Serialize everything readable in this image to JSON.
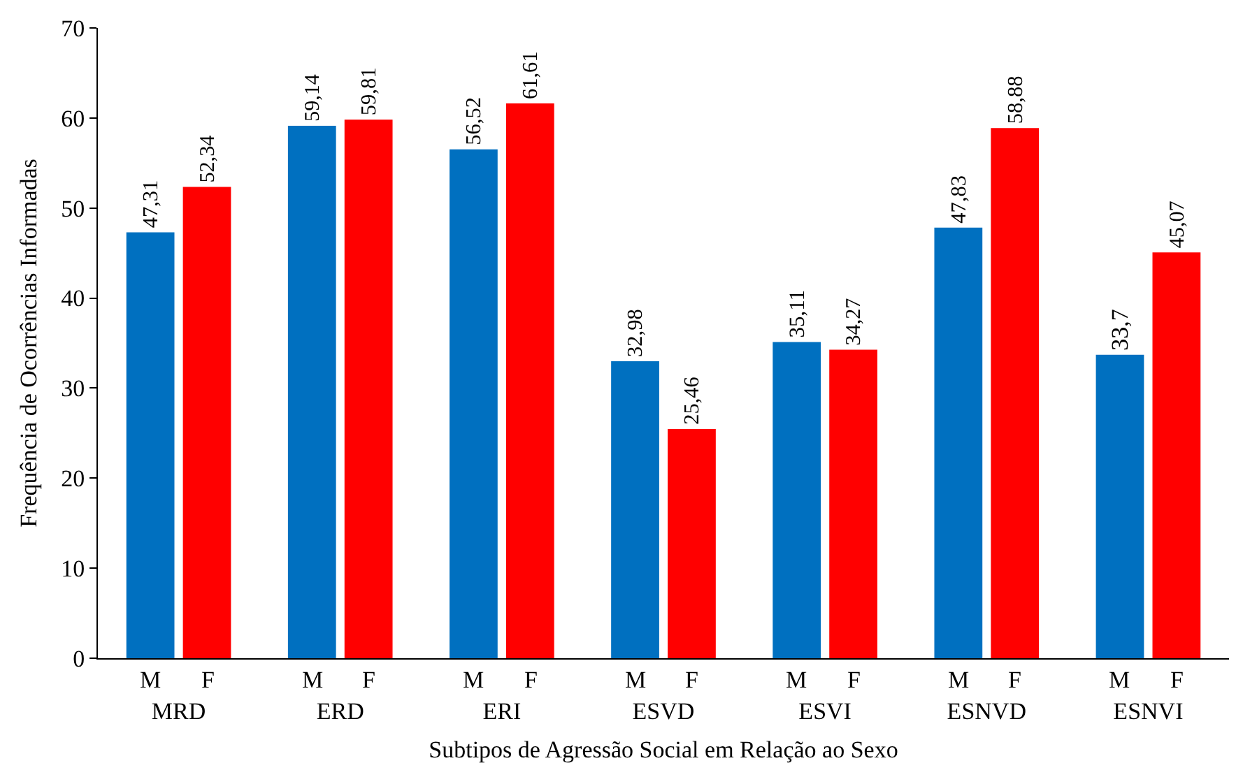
{
  "chart_data": {
    "type": "bar",
    "xlabel": "Subtipos de Agressão Social em Relação ao Sexo",
    "ylabel": "Frequência de Ocorrências Informadas",
    "categories": [
      "MRD",
      "ERD",
      "ERI",
      "ESVD",
      "ESVI",
      "ESNVD",
      "ESNVI"
    ],
    "series": [
      {
        "name": "M",
        "color": "#0070c0",
        "values": [
          47.31,
          59.14,
          56.52,
          32.98,
          35.11,
          47.83,
          33.7
        ],
        "value_labels": [
          "47,31",
          "59,14",
          "56,52",
          "32,98",
          "35,11",
          "47,83",
          "33,7"
        ]
      },
      {
        "name": "F",
        "color": "#ff0000",
        "values": [
          52.34,
          59.81,
          61.61,
          25.46,
          34.27,
          58.88,
          45.07
        ],
        "value_labels": [
          "52,34",
          "59,81",
          "61,61",
          "25,46",
          "34,27",
          "58,88",
          "45,07"
        ]
      }
    ],
    "ylim": [
      0,
      70
    ],
    "yticks": [
      0,
      10,
      20,
      30,
      40,
      50,
      60,
      70
    ],
    "grid": false,
    "legend": false
  }
}
